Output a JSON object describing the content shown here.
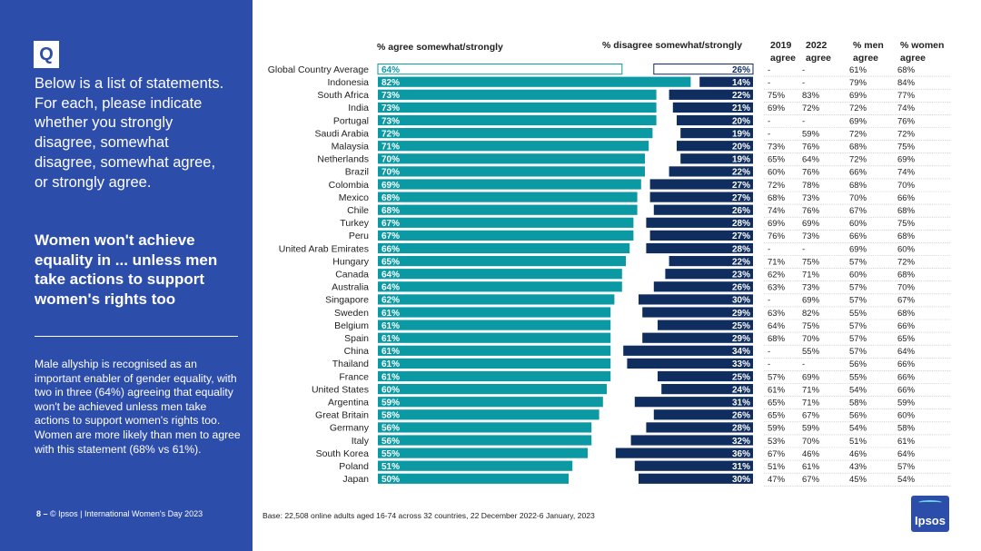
{
  "sidebar": {
    "q_label": "Q",
    "intro": "Below is a list of statements. For each, please indicate whether you strongly disagree, somewhat disagree, somewhat agree, or strongly agree.",
    "statement": "Women won't achieve equality in ... unless men take actions to support women's rights too",
    "summary": "Male allyship is recognised as an important enabler of gender equality, with two in three (64%) agreeing that equality won't be achieved unless men take actions to support women's rights too. Women are more likely than men to agree with this statement (68% vs 61%).",
    "footer_page": "8 –",
    "footer_text": "© Ipsos | International Women's Day 2023"
  },
  "base_note": "Base: 22,508 online adults aged 16-74 across 32 countries, 22 December 2022-6 January, 2023",
  "logo_text": "Ipsos",
  "colors": {
    "sidebar": "#2d4dab",
    "agree": "#0b9aa3",
    "disagree": "#0f2d5e",
    "highlight_fill": "#ffffff"
  },
  "chart_data": {
    "type": "bar",
    "title": "Women won't achieve equality in ... unless men take actions to support women's rights too",
    "agree_label": "% agree somewhat/strongly",
    "disagree_label": "% disagree somewhat/strongly",
    "column_headers": {
      "y2019": "2019 agree",
      "y2022": "2022 agree",
      "men": "% men agree",
      "women": "% women agree"
    },
    "rows": [
      {
        "country": "Global Country Average",
        "agree": "64%",
        "disagree": "26%",
        "y2019": "-",
        "y2022": "-",
        "men": "61%",
        "women": "68%"
      },
      {
        "country": "Indonesia",
        "agree": "82%",
        "disagree": "14%",
        "y2019": "-",
        "y2022": "-",
        "men": "79%",
        "women": "84%"
      },
      {
        "country": "South Africa",
        "agree": "73%",
        "disagree": "22%",
        "y2019": "75%",
        "y2022": "83%",
        "men": "69%",
        "women": "77%"
      },
      {
        "country": "India",
        "agree": "73%",
        "disagree": "21%",
        "y2019": "69%",
        "y2022": "72%",
        "men": "72%",
        "women": "74%"
      },
      {
        "country": "Portugal",
        "agree": "73%",
        "disagree": "20%",
        "y2019": "-",
        "y2022": "-",
        "men": "69%",
        "women": "76%"
      },
      {
        "country": "Saudi Arabia",
        "agree": "72%",
        "disagree": "19%",
        "y2019": "-",
        "y2022": "59%",
        "men": "72%",
        "women": "72%"
      },
      {
        "country": "Malaysia",
        "agree": "71%",
        "disagree": "20%",
        "y2019": "73%",
        "y2022": "76%",
        "men": "68%",
        "women": "75%"
      },
      {
        "country": "Netherlands",
        "agree": "70%",
        "disagree": "19%",
        "y2019": "65%",
        "y2022": "64%",
        "men": "72%",
        "women": "69%"
      },
      {
        "country": "Brazil",
        "agree": "70%",
        "disagree": "22%",
        "y2019": "60%",
        "y2022": "76%",
        "men": "66%",
        "women": "74%"
      },
      {
        "country": "Colombia",
        "agree": "69%",
        "disagree": "27%",
        "y2019": "72%",
        "y2022": "78%",
        "men": "68%",
        "women": "70%"
      },
      {
        "country": "Mexico",
        "agree": "68%",
        "disagree": "27%",
        "y2019": "68%",
        "y2022": "73%",
        "men": "70%",
        "women": "66%"
      },
      {
        "country": "Chile",
        "agree": "68%",
        "disagree": "26%",
        "y2019": "74%",
        "y2022": "76%",
        "men": "67%",
        "women": "68%"
      },
      {
        "country": "Turkey",
        "agree": "67%",
        "disagree": "28%",
        "y2019": "69%",
        "y2022": "69%",
        "men": "60%",
        "women": "75%"
      },
      {
        "country": "Peru",
        "agree": "67%",
        "disagree": "27%",
        "y2019": "76%",
        "y2022": "73%",
        "men": "66%",
        "women": "68%"
      },
      {
        "country": "United Arab Emirates",
        "agree": "66%",
        "disagree": "28%",
        "y2019": "-",
        "y2022": "-",
        "men": "69%",
        "women": "60%"
      },
      {
        "country": "Hungary",
        "agree": "65%",
        "disagree": "22%",
        "y2019": "71%",
        "y2022": "75%",
        "men": "57%",
        "women": "72%"
      },
      {
        "country": "Canada",
        "agree": "64%",
        "disagree": "23%",
        "y2019": "62%",
        "y2022": "71%",
        "men": "60%",
        "women": "68%"
      },
      {
        "country": "Australia",
        "agree": "64%",
        "disagree": "26%",
        "y2019": "63%",
        "y2022": "73%",
        "men": "57%",
        "women": "70%"
      },
      {
        "country": "Singapore",
        "agree": "62%",
        "disagree": "30%",
        "y2019": "-",
        "y2022": "69%",
        "men": "57%",
        "women": "67%"
      },
      {
        "country": "Sweden",
        "agree": "61%",
        "disagree": "29%",
        "y2019": "63%",
        "y2022": "82%",
        "men": "55%",
        "women": "68%"
      },
      {
        "country": "Belgium",
        "agree": "61%",
        "disagree": "25%",
        "y2019": "64%",
        "y2022": "75%",
        "men": "57%",
        "women": "66%"
      },
      {
        "country": "Spain",
        "agree": "61%",
        "disagree": "29%",
        "y2019": "68%",
        "y2022": "70%",
        "men": "57%",
        "women": "65%"
      },
      {
        "country": "China",
        "agree": "61%",
        "disagree": "34%",
        "y2019": "-",
        "y2022": "55%",
        "men": "57%",
        "women": "64%"
      },
      {
        "country": "Thailand",
        "agree": "61%",
        "disagree": "33%",
        "y2019": "-",
        "y2022": "-",
        "men": "56%",
        "women": "66%"
      },
      {
        "country": "France",
        "agree": "61%",
        "disagree": "25%",
        "y2019": "57%",
        "y2022": "69%",
        "men": "55%",
        "women": "66%"
      },
      {
        "country": "United States",
        "agree": "60%",
        "disagree": "24%",
        "y2019": "61%",
        "y2022": "71%",
        "men": "54%",
        "women": "66%"
      },
      {
        "country": "Argentina",
        "agree": "59%",
        "disagree": "31%",
        "y2019": "65%",
        "y2022": "71%",
        "men": "58%",
        "women": "59%"
      },
      {
        "country": "Great Britain",
        "agree": "58%",
        "disagree": "26%",
        "y2019": "65%",
        "y2022": "67%",
        "men": "56%",
        "women": "60%"
      },
      {
        "country": "Germany",
        "agree": "56%",
        "disagree": "28%",
        "y2019": "59%",
        "y2022": "59%",
        "men": "54%",
        "women": "58%"
      },
      {
        "country": "Italy",
        "agree": "56%",
        "disagree": "32%",
        "y2019": "53%",
        "y2022": "70%",
        "men": "51%",
        "women": "61%"
      },
      {
        "country": "South Korea",
        "agree": "55%",
        "disagree": "36%",
        "y2019": "67%",
        "y2022": "46%",
        "men": "46%",
        "women": "64%"
      },
      {
        "country": "Poland",
        "agree": "51%",
        "disagree": "31%",
        "y2019": "51%",
        "y2022": "61%",
        "men": "43%",
        "women": "57%"
      },
      {
        "country": "Japan",
        "agree": "50%",
        "disagree": "30%",
        "y2019": "47%",
        "y2022": "67%",
        "men": "45%",
        "women": "54%"
      }
    ]
  }
}
